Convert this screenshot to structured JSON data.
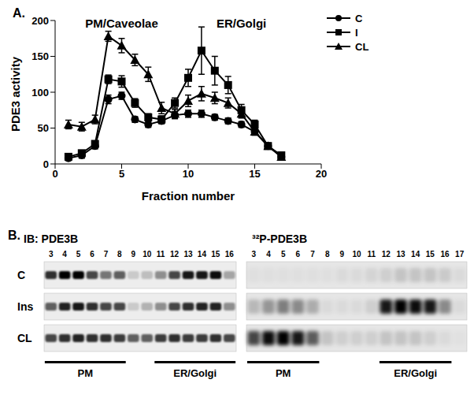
{
  "panel_labels": [
    "A.",
    "B."
  ],
  "chart_data": {
    "type": "line",
    "x_label": "Fraction number",
    "y_label": "PDE3 activity",
    "x": [
      1,
      2,
      3,
      4,
      5,
      6,
      7,
      8,
      9,
      10,
      11,
      12,
      13,
      14,
      15,
      16,
      17
    ],
    "xlim": [
      0,
      20
    ],
    "xticks": [
      0,
      5,
      10,
      15,
      20
    ],
    "ylim": [
      0,
      200
    ],
    "yticks": [
      0,
      50,
      100,
      150,
      200
    ],
    "legend": "upper right",
    "annotations": [
      {
        "text": "PM/Caveolae",
        "x": 5,
        "y": 196
      },
      {
        "text": "ER/Golgi",
        "x": 14,
        "y": 196
      }
    ],
    "series": [
      {
        "name": "C",
        "color": "#000000",
        "marker": "circle",
        "values": [
          8,
          12,
          25,
          90,
          95,
          62,
          55,
          60,
          68,
          70,
          70,
          65,
          60,
          55,
          45,
          25,
          10
        ],
        "errors": [
          3,
          4,
          4,
          6,
          5,
          4,
          4,
          4,
          5,
          5,
          5,
          4,
          4,
          4,
          4,
          3,
          3
        ]
      },
      {
        "name": "I",
        "color": "#000000",
        "marker": "square",
        "values": [
          10,
          15,
          28,
          118,
          115,
          85,
          65,
          62,
          85,
          120,
          158,
          130,
          110,
          75,
          55,
          25,
          12
        ],
        "errors": [
          3,
          4,
          4,
          6,
          8,
          6,
          5,
          5,
          7,
          12,
          33,
          20,
          12,
          8,
          6,
          4,
          3
        ]
      },
      {
        "name": "CL",
        "color": "#000000",
        "marker": "triangle",
        "values": [
          55,
          52,
          62,
          178,
          165,
          145,
          125,
          78,
          70,
          88,
          98,
          92,
          85,
          70,
          45,
          25,
          10
        ],
        "errors": [
          6,
          6,
          6,
          7,
          10,
          8,
          10,
          8,
          6,
          8,
          10,
          8,
          7,
          6,
          5,
          4,
          3
        ]
      }
    ]
  },
  "blots": {
    "row_labels": [
      "C",
      "Ins",
      "CL"
    ],
    "panels": [
      {
        "title": "IB: PDE3B",
        "lanes": [
          3,
          4,
          5,
          6,
          7,
          8,
          9,
          10,
          11,
          12,
          13,
          14,
          15,
          16
        ],
        "bands": [
          [
            0.8,
            1,
            1,
            0.7,
            0.5,
            0.6,
            0.15,
            0.2,
            0.4,
            0.7,
            0.9,
            0.9,
            0.95,
            0.3
          ],
          [
            0.6,
            0.85,
            0.9,
            0.8,
            0.7,
            0.7,
            0.15,
            0.25,
            0.4,
            0.7,
            0.8,
            0.85,
            0.85,
            0.4
          ],
          [
            0.7,
            0.8,
            0.85,
            0.8,
            0.8,
            0.75,
            0.6,
            0.6,
            0.75,
            0.8,
            0.75,
            0.75,
            0.8,
            0.7
          ]
        ],
        "regions": [
          {
            "label": "PM",
            "from": 3,
            "to": 8
          },
          {
            "label": "ER/Golgi",
            "from": 11,
            "to": 16
          }
        ]
      },
      {
        "title": "³²P-PDE3B",
        "lanes": [
          3,
          4,
          5,
          6,
          7,
          8,
          9,
          10,
          11,
          12,
          13,
          14,
          15,
          16,
          17
        ],
        "bands": [
          [
            0.03,
            0.03,
            0.03,
            0.03,
            0.03,
            0.03,
            0.05,
            0.05,
            0.08,
            0.1,
            0.15,
            0.15,
            0.15,
            0.12,
            0.05
          ],
          [
            0.2,
            0.35,
            0.45,
            0.4,
            0.25,
            0.05,
            0.05,
            0.05,
            0.1,
            0.9,
            1,
            0.95,
            0.9,
            0.4,
            0.05
          ],
          [
            0.7,
            0.95,
            1,
            0.9,
            0.6,
            0.15,
            0.1,
            0.1,
            0.1,
            0.15,
            0.15,
            0.15,
            0.1,
            0.05,
            0.02
          ]
        ],
        "regions": [
          {
            "label": "PM",
            "from": 3,
            "to": 7
          },
          {
            "label": "ER/Golgi",
            "from": 12,
            "to": 16
          }
        ]
      }
    ]
  }
}
